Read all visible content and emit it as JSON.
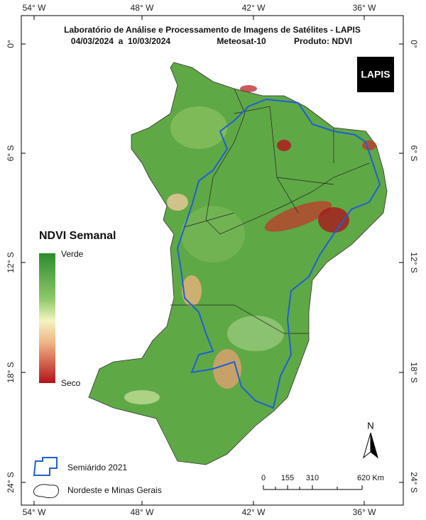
{
  "header": {
    "title": "Laboratório de Análise e Processamento de Imagens de Satélites - LAPIS",
    "dates": "04/03/2024  a  10/03/2024",
    "satellite": "Meteosat-10",
    "product": "Produto: NDVI"
  },
  "logo": "LAPIS",
  "axes": {
    "longitude": [
      "54° W",
      "48° W",
      "42° W",
      "36° W"
    ],
    "latitude": [
      "0°",
      "6° S",
      "12° S",
      "18° S",
      "24° S"
    ]
  },
  "legend": {
    "title": "NDVI Semanal",
    "high": "Verde",
    "low": "Seco"
  },
  "map_legend": [
    "Semiárido 2021",
    "Nordeste e Minas Gerais"
  ],
  "scale": {
    "labels": [
      "0",
      "155",
      "310",
      "620 Km"
    ]
  },
  "north": "N"
}
